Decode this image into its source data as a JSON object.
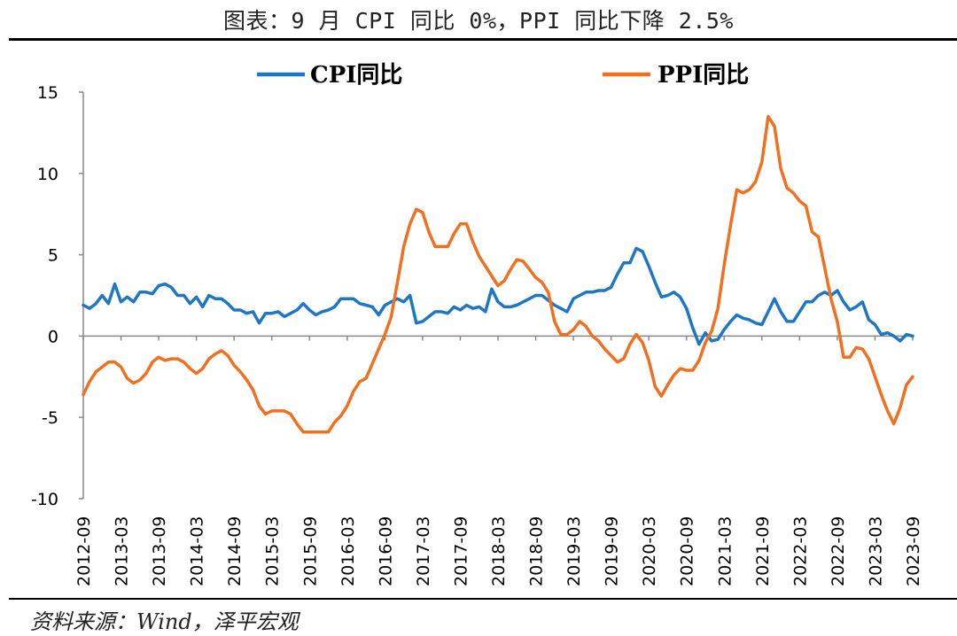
{
  "title": "图表：9 月 CPI 同比 0%，PPI 同比下降 2.5%",
  "source": "资料来源：Wind，泽平宏观",
  "chart_data": {
    "type": "line",
    "title": "图表：9 月 CPI 同比 0%，PPI 同比下降 2.5%",
    "xlabel": "",
    "ylabel": "",
    "ylim": [
      -10,
      15
    ],
    "yticks": [
      "15",
      "10",
      "5",
      "0",
      "-5",
      "-10"
    ],
    "xticks": [
      "2012-09",
      "2013-03",
      "2013-09",
      "2014-03",
      "2014-09",
      "2015-03",
      "2015-09",
      "2016-03",
      "2016-09",
      "2017-03",
      "2017-09",
      "2018-03",
      "2018-09",
      "2019-03",
      "2019-09",
      "2020-03",
      "2020-09",
      "2021-03",
      "2021-09",
      "2022-03",
      "2022-09",
      "2023-03",
      "2023-09"
    ],
    "grid": false,
    "legend_position": "top",
    "series": [
      {
        "name": "CPI同比",
        "color": "#1f77c4",
        "points": [
          [
            "2012-09",
            1.9
          ],
          [
            "2012-10",
            1.7
          ],
          [
            "2012-11",
            2.0
          ],
          [
            "2012-12",
            2.5
          ],
          [
            "2013-01",
            2.0
          ],
          [
            "2013-02",
            3.2
          ],
          [
            "2013-03",
            2.1
          ],
          [
            "2013-04",
            2.4
          ],
          [
            "2013-05",
            2.1
          ],
          [
            "2013-06",
            2.7
          ],
          [
            "2013-07",
            2.7
          ],
          [
            "2013-08",
            2.6
          ],
          [
            "2013-09",
            3.1
          ],
          [
            "2013-10",
            3.2
          ],
          [
            "2013-11",
            3.0
          ],
          [
            "2013-12",
            2.5
          ],
          [
            "2014-01",
            2.5
          ],
          [
            "2014-02",
            2.0
          ],
          [
            "2014-03",
            2.4
          ],
          [
            "2014-04",
            1.8
          ],
          [
            "2014-05",
            2.5
          ],
          [
            "2014-06",
            2.3
          ],
          [
            "2014-07",
            2.3
          ],
          [
            "2014-08",
            2.0
          ],
          [
            "2014-09",
            1.6
          ],
          [
            "2014-10",
            1.6
          ],
          [
            "2014-11",
            1.4
          ],
          [
            "2014-12",
            1.5
          ],
          [
            "2015-01",
            0.8
          ],
          [
            "2015-02",
            1.4
          ],
          [
            "2015-03",
            1.4
          ],
          [
            "2015-04",
            1.5
          ],
          [
            "2015-05",
            1.2
          ],
          [
            "2015-06",
            1.4
          ],
          [
            "2015-07",
            1.6
          ],
          [
            "2015-08",
            2.0
          ],
          [
            "2015-09",
            1.6
          ],
          [
            "2015-10",
            1.3
          ],
          [
            "2015-11",
            1.5
          ],
          [
            "2015-12",
            1.6
          ],
          [
            "2016-01",
            1.8
          ],
          [
            "2016-02",
            2.3
          ],
          [
            "2016-03",
            2.3
          ],
          [
            "2016-04",
            2.3
          ],
          [
            "2016-05",
            2.0
          ],
          [
            "2016-06",
            1.9
          ],
          [
            "2016-07",
            1.8
          ],
          [
            "2016-08",
            1.3
          ],
          [
            "2016-09",
            1.9
          ],
          [
            "2016-10",
            2.1
          ],
          [
            "2016-11",
            2.3
          ],
          [
            "2016-12",
            2.1
          ],
          [
            "2017-01",
            2.5
          ],
          [
            "2017-02",
            0.8
          ],
          [
            "2017-03",
            0.9
          ],
          [
            "2017-04",
            1.2
          ],
          [
            "2017-05",
            1.5
          ],
          [
            "2017-06",
            1.5
          ],
          [
            "2017-07",
            1.4
          ],
          [
            "2017-08",
            1.8
          ],
          [
            "2017-09",
            1.6
          ],
          [
            "2017-10",
            1.9
          ],
          [
            "2017-11",
            1.7
          ],
          [
            "2017-12",
            1.8
          ],
          [
            "2018-01",
            1.5
          ],
          [
            "2018-02",
            2.9
          ],
          [
            "2018-03",
            2.1
          ],
          [
            "2018-04",
            1.8
          ],
          [
            "2018-05",
            1.8
          ],
          [
            "2018-06",
            1.9
          ],
          [
            "2018-07",
            2.1
          ],
          [
            "2018-08",
            2.3
          ],
          [
            "2018-09",
            2.5
          ],
          [
            "2018-10",
            2.5
          ],
          [
            "2018-11",
            2.2
          ],
          [
            "2018-12",
            1.9
          ],
          [
            "2019-01",
            1.7
          ],
          [
            "2019-02",
            1.5
          ],
          [
            "2019-03",
            2.3
          ],
          [
            "2019-04",
            2.5
          ],
          [
            "2019-05",
            2.7
          ],
          [
            "2019-06",
            2.7
          ],
          [
            "2019-07",
            2.8
          ],
          [
            "2019-08",
            2.8
          ],
          [
            "2019-09",
            3.0
          ],
          [
            "2019-10",
            3.8
          ],
          [
            "2019-11",
            4.5
          ],
          [
            "2019-12",
            4.5
          ],
          [
            "2020-01",
            5.4
          ],
          [
            "2020-02",
            5.2
          ],
          [
            "2020-03",
            4.3
          ],
          [
            "2020-04",
            3.3
          ],
          [
            "2020-05",
            2.4
          ],
          [
            "2020-06",
            2.5
          ],
          [
            "2020-07",
            2.7
          ],
          [
            "2020-08",
            2.4
          ],
          [
            "2020-09",
            1.7
          ],
          [
            "2020-10",
            0.5
          ],
          [
            "2020-11",
            -0.5
          ],
          [
            "2020-12",
            0.2
          ],
          [
            "2021-01",
            -0.3
          ],
          [
            "2021-02",
            -0.2
          ],
          [
            "2021-03",
            0.4
          ],
          [
            "2021-04",
            0.9
          ],
          [
            "2021-05",
            1.3
          ],
          [
            "2021-06",
            1.1
          ],
          [
            "2021-07",
            1.0
          ],
          [
            "2021-08",
            0.8
          ],
          [
            "2021-09",
            0.7
          ],
          [
            "2021-10",
            1.5
          ],
          [
            "2021-11",
            2.3
          ],
          [
            "2021-12",
            1.5
          ],
          [
            "2022-01",
            0.9
          ],
          [
            "2022-02",
            0.9
          ],
          [
            "2022-03",
            1.5
          ],
          [
            "2022-04",
            2.1
          ],
          [
            "2022-05",
            2.1
          ],
          [
            "2022-06",
            2.5
          ],
          [
            "2022-07",
            2.7
          ],
          [
            "2022-08",
            2.5
          ],
          [
            "2022-09",
            2.8
          ],
          [
            "2022-10",
            2.1
          ],
          [
            "2022-11",
            1.6
          ],
          [
            "2022-12",
            1.8
          ],
          [
            "2023-01",
            2.1
          ],
          [
            "2023-02",
            1.0
          ],
          [
            "2023-03",
            0.7
          ],
          [
            "2023-04",
            0.1
          ],
          [
            "2023-05",
            0.2
          ],
          [
            "2023-06",
            0.0
          ],
          [
            "2023-07",
            -0.3
          ],
          [
            "2023-08",
            0.1
          ],
          [
            "2023-09",
            0.0
          ]
        ]
      },
      {
        "name": "PPI同比",
        "color": "#f07020",
        "points": [
          [
            "2012-09",
            -3.6
          ],
          [
            "2012-10",
            -2.8
          ],
          [
            "2012-11",
            -2.2
          ],
          [
            "2012-12",
            -1.9
          ],
          [
            "2013-01",
            -1.6
          ],
          [
            "2013-02",
            -1.6
          ],
          [
            "2013-03",
            -1.9
          ],
          [
            "2013-04",
            -2.6
          ],
          [
            "2013-05",
            -2.9
          ],
          [
            "2013-06",
            -2.7
          ],
          [
            "2013-07",
            -2.3
          ],
          [
            "2013-08",
            -1.6
          ],
          [
            "2013-09",
            -1.3
          ],
          [
            "2013-10",
            -1.5
          ],
          [
            "2013-11",
            -1.4
          ],
          [
            "2013-12",
            -1.4
          ],
          [
            "2014-01",
            -1.6
          ],
          [
            "2014-02",
            -2.0
          ],
          [
            "2014-03",
            -2.3
          ],
          [
            "2014-04",
            -2.0
          ],
          [
            "2014-05",
            -1.4
          ],
          [
            "2014-06",
            -1.1
          ],
          [
            "2014-07",
            -0.9
          ],
          [
            "2014-08",
            -1.2
          ],
          [
            "2014-09",
            -1.8
          ],
          [
            "2014-10",
            -2.2
          ],
          [
            "2014-11",
            -2.7
          ],
          [
            "2014-12",
            -3.3
          ],
          [
            "2015-01",
            -4.3
          ],
          [
            "2015-02",
            -4.8
          ],
          [
            "2015-03",
            -4.6
          ],
          [
            "2015-04",
            -4.6
          ],
          [
            "2015-05",
            -4.6
          ],
          [
            "2015-06",
            -4.8
          ],
          [
            "2015-07",
            -5.4
          ],
          [
            "2015-08",
            -5.9
          ],
          [
            "2015-09",
            -5.9
          ],
          [
            "2015-10",
            -5.9
          ],
          [
            "2015-11",
            -5.9
          ],
          [
            "2015-12",
            -5.9
          ],
          [
            "2016-01",
            -5.3
          ],
          [
            "2016-02",
            -4.9
          ],
          [
            "2016-03",
            -4.3
          ],
          [
            "2016-04",
            -3.4
          ],
          [
            "2016-05",
            -2.8
          ],
          [
            "2016-06",
            -2.6
          ],
          [
            "2016-07",
            -1.7
          ],
          [
            "2016-08",
            -0.8
          ],
          [
            "2016-09",
            0.1
          ],
          [
            "2016-10",
            1.2
          ],
          [
            "2016-11",
            3.3
          ],
          [
            "2016-12",
            5.5
          ],
          [
            "2017-01",
            6.9
          ],
          [
            "2017-02",
            7.8
          ],
          [
            "2017-03",
            7.6
          ],
          [
            "2017-04",
            6.4
          ],
          [
            "2017-05",
            5.5
          ],
          [
            "2017-06",
            5.5
          ],
          [
            "2017-07",
            5.5
          ],
          [
            "2017-08",
            6.3
          ],
          [
            "2017-09",
            6.9
          ],
          [
            "2017-10",
            6.9
          ],
          [
            "2017-11",
            5.8
          ],
          [
            "2017-12",
            4.9
          ],
          [
            "2018-01",
            4.3
          ],
          [
            "2018-02",
            3.7
          ],
          [
            "2018-03",
            3.1
          ],
          [
            "2018-04",
            3.4
          ],
          [
            "2018-05",
            4.1
          ],
          [
            "2018-06",
            4.7
          ],
          [
            "2018-07",
            4.6
          ],
          [
            "2018-08",
            4.1
          ],
          [
            "2018-09",
            3.6
          ],
          [
            "2018-10",
            3.3
          ],
          [
            "2018-11",
            2.7
          ],
          [
            "2018-12",
            0.9
          ],
          [
            "2019-01",
            0.1
          ],
          [
            "2019-02",
            0.1
          ],
          [
            "2019-03",
            0.4
          ],
          [
            "2019-04",
            0.9
          ],
          [
            "2019-05",
            0.6
          ],
          [
            "2019-06",
            0.0
          ],
          [
            "2019-07",
            -0.3
          ],
          [
            "2019-08",
            -0.8
          ],
          [
            "2019-09",
            -1.2
          ],
          [
            "2019-10",
            -1.6
          ],
          [
            "2019-11",
            -1.4
          ],
          [
            "2019-12",
            -0.5
          ],
          [
            "2020-01",
            0.1
          ],
          [
            "2020-02",
            -0.4
          ],
          [
            "2020-03",
            -1.5
          ],
          [
            "2020-04",
            -3.1
          ],
          [
            "2020-05",
            -3.7
          ],
          [
            "2020-06",
            -3.0
          ],
          [
            "2020-07",
            -2.4
          ],
          [
            "2020-08",
            -2.0
          ],
          [
            "2020-09",
            -2.1
          ],
          [
            "2020-10",
            -2.1
          ],
          [
            "2020-11",
            -1.5
          ],
          [
            "2020-12",
            -0.4
          ],
          [
            "2021-01",
            0.3
          ],
          [
            "2021-02",
            1.7
          ],
          [
            "2021-03",
            4.4
          ],
          [
            "2021-04",
            6.8
          ],
          [
            "2021-05",
            9.0
          ],
          [
            "2021-06",
            8.8
          ],
          [
            "2021-07",
            9.0
          ],
          [
            "2021-08",
            9.5
          ],
          [
            "2021-09",
            10.7
          ],
          [
            "2021-10",
            13.5
          ],
          [
            "2021-11",
            12.9
          ],
          [
            "2021-12",
            10.3
          ],
          [
            "2022-01",
            9.1
          ],
          [
            "2022-02",
            8.8
          ],
          [
            "2022-03",
            8.3
          ],
          [
            "2022-04",
            8.0
          ],
          [
            "2022-05",
            6.4
          ],
          [
            "2022-06",
            6.1
          ],
          [
            "2022-07",
            4.2
          ],
          [
            "2022-08",
            2.3
          ],
          [
            "2022-09",
            0.9
          ],
          [
            "2022-10",
            -1.3
          ],
          [
            "2022-11",
            -1.3
          ],
          [
            "2022-12",
            -0.7
          ],
          [
            "2023-01",
            -0.8
          ],
          [
            "2023-02",
            -1.4
          ],
          [
            "2023-03",
            -2.5
          ],
          [
            "2023-04",
            -3.6
          ],
          [
            "2023-05",
            -4.6
          ],
          [
            "2023-06",
            -5.4
          ],
          [
            "2023-07",
            -4.4
          ],
          [
            "2023-08",
            -3.0
          ],
          [
            "2023-09",
            -2.5
          ]
        ]
      }
    ]
  }
}
